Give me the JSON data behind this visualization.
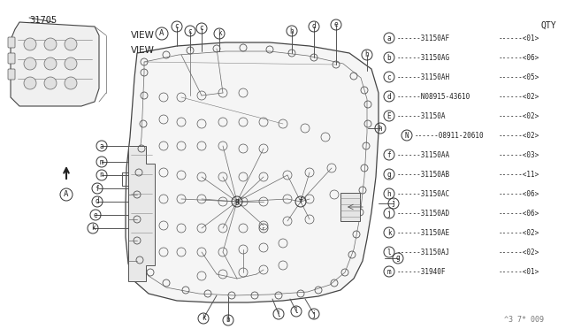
{
  "bg_color": "#ffffff",
  "part_number_label": "31705",
  "view_label_a": "VIEW",
  "view_circle_a": "A",
  "view_label": "VIEW",
  "watermark": "^3 7* 009",
  "qty_header": "QTY",
  "parts": [
    {
      "label": "a",
      "part": "31150AF",
      "qty": "<01>",
      "circled": true,
      "indent": false
    },
    {
      "label": "b",
      "part": "31150AG",
      "qty": "<06>",
      "circled": true,
      "indent": false
    },
    {
      "label": "c",
      "part": "31150AH",
      "qty": "<05>",
      "circled": true,
      "indent": false
    },
    {
      "label": "d",
      "part": "N08915-43610",
      "qty": "<02>",
      "circled": true,
      "indent": false
    },
    {
      "label": "E",
      "part": "31150A",
      "qty": "<02>",
      "circled": true,
      "indent": false
    },
    {
      "label": "N",
      "part": "08911-20610",
      "qty": "<02>",
      "circled": false,
      "indent": true
    },
    {
      "label": "f",
      "part": "31150AA",
      "qty": "<03>",
      "circled": true,
      "indent": false
    },
    {
      "label": "g",
      "part": "31150AB",
      "qty": "<11>",
      "circled": true,
      "indent": false
    },
    {
      "label": "h",
      "part": "31150AC",
      "qty": "<06>",
      "circled": true,
      "indent": false
    },
    {
      "label": "j",
      "part": "31150AD",
      "qty": "<06>",
      "circled": true,
      "indent": false
    },
    {
      "label": "k",
      "part": "31150AE",
      "qty": "<02>",
      "circled": true,
      "indent": false
    },
    {
      "label": "l",
      "part": "31150AJ",
      "qty": "<02>",
      "circled": true,
      "indent": false
    },
    {
      "label": "m",
      "part": "31940F",
      "qty": "<01>",
      "circled": true,
      "indent": false
    }
  ]
}
